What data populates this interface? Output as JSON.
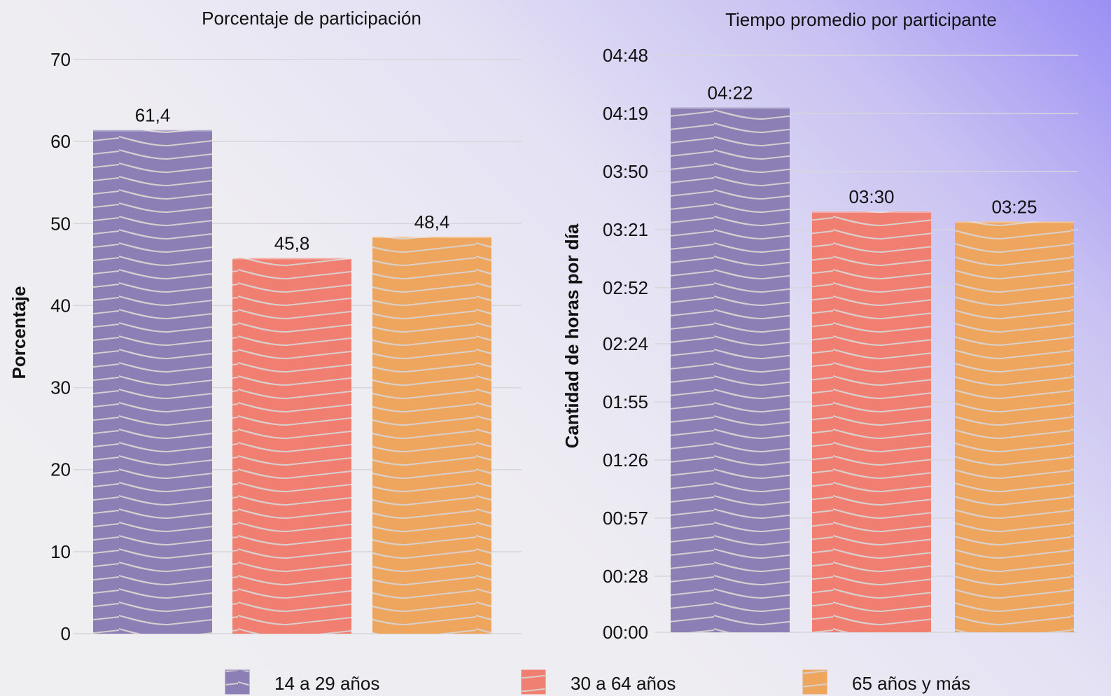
{
  "legend": [
    {
      "label": "14 a 29 años",
      "color": "#8c7fb6"
    },
    {
      "label": "30 a 64 años",
      "color": "#f07f72"
    },
    {
      "label": "65 años y más",
      "color": "#eea55e"
    }
  ],
  "chart_data": [
    {
      "type": "bar",
      "title": "Porcentaje de participación",
      "ylabel": "Porcentaje",
      "xlabel": "",
      "categories": [
        "14 a 29 años",
        "30 a 64 años",
        "65 años y más"
      ],
      "values": [
        61.4,
        45.8,
        48.4
      ],
      "value_labels": [
        "61,4",
        "45,8",
        "48,4"
      ],
      "yticks": [
        0,
        10,
        20,
        30,
        40,
        50,
        60,
        70
      ],
      "ytick_labels": [
        "0",
        "10",
        "20",
        "30",
        "40",
        "50",
        "60",
        "70"
      ],
      "ylim": [
        0,
        70
      ],
      "grid": true
    },
    {
      "type": "bar",
      "title": "Tiempo promedio por participante",
      "ylabel": "Cantidad de horas por día",
      "xlabel": "",
      "unit": "minutes",
      "categories": [
        "14 a 29 años",
        "30 a 64 años",
        "65 años y más"
      ],
      "values": [
        262,
        210,
        205
      ],
      "value_labels": [
        "04:22",
        "03:30",
        "03:25"
      ],
      "yticks": [
        0,
        28,
        57,
        86,
        115,
        144,
        172,
        201,
        230,
        259,
        288
      ],
      "ytick_labels": [
        "00:00",
        "00:28",
        "00:57",
        "01:26",
        "01:55",
        "02:24",
        "02:52",
        "03:21",
        "03:50",
        "04:19",
        "04:48"
      ],
      "ylim": [
        0,
        288
      ],
      "grid": true
    }
  ]
}
